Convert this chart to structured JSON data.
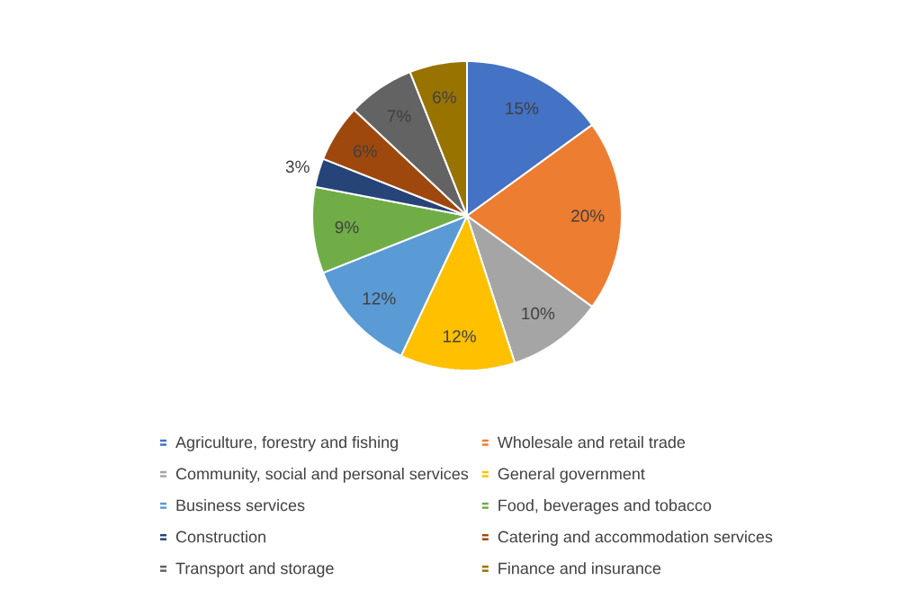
{
  "chart_data": {
    "type": "pie",
    "categories": [
      "Agriculture, forestry and fishing",
      "Wholesale and retail trade",
      "Community, social and personal services",
      "General government",
      "Business services",
      "Food, beverages and tobacco",
      "Construction",
      "Catering and accommodation services",
      "Transport and storage",
      "Finance and insurance"
    ],
    "values": [
      15,
      20,
      10,
      12,
      12,
      9,
      3,
      6,
      7,
      6
    ],
    "value_labels": [
      "15%",
      "20%",
      "10%",
      "12%",
      "12%",
      "9%",
      "3%",
      "6%",
      "7%",
      "6%"
    ],
    "colors": [
      "#4472c4",
      "#ed7d31",
      "#a5a5a5",
      "#ffc000",
      "#5b9bd5",
      "#70ad47",
      "#264478",
      "#9e480e",
      "#636363",
      "#997300"
    ],
    "legend": "bottom"
  }
}
